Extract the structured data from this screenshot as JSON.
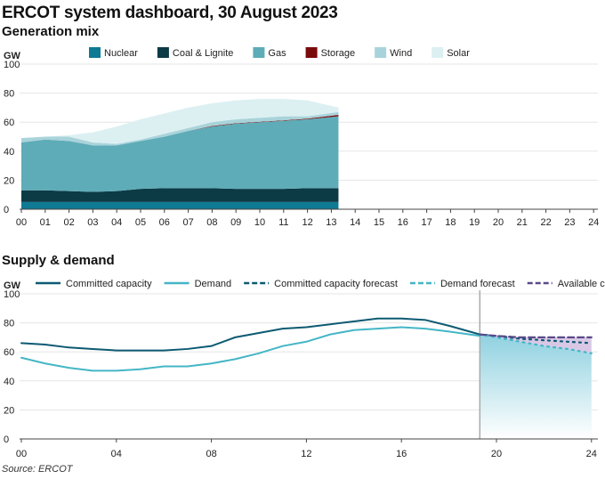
{
  "title": "ERCOT system dashboard, 30 August 2023",
  "source": "Source: ERCOT",
  "chart_data": [
    {
      "type": "area",
      "title": "Generation mix",
      "ylabel": "GW",
      "ylim": [
        0,
        100
      ],
      "yticks": [
        0,
        20,
        40,
        60,
        80,
        100
      ],
      "xlim": [
        0,
        24
      ],
      "xticks": [
        "00",
        "01",
        "02",
        "03",
        "04",
        "05",
        "06",
        "07",
        "08",
        "09",
        "10",
        "11",
        "12",
        "13",
        "14",
        "15",
        "16",
        "17",
        "18",
        "19",
        "20",
        "21",
        "22",
        "23",
        "24"
      ],
      "stacked": true,
      "x": [
        0,
        1,
        2,
        3,
        4,
        5,
        6,
        7,
        8,
        9,
        10,
        11,
        12,
        13.3
      ],
      "series": [
        {
          "name": "Nuclear",
          "color": "#0e7a93",
          "values": [
            5,
            5,
            5,
            5,
            5,
            5,
            5,
            5,
            5,
            5,
            5,
            5,
            5,
            5
          ]
        },
        {
          "name": "Coal & Lignite",
          "color": "#0c3a45",
          "values": [
            8,
            8,
            7.5,
            7,
            7.5,
            9,
            9.5,
            9.5,
            9.5,
            9,
            9,
            9,
            9.5,
            9.5
          ]
        },
        {
          "name": "Gas",
          "color": "#5eacb8",
          "values": [
            33,
            35,
            34.5,
            32,
            31.5,
            33,
            35.5,
            39.5,
            42.5,
            45,
            46,
            47,
            47.5,
            49.5
          ]
        },
        {
          "name": "Storage",
          "color": "#7a0b0b",
          "values": [
            0,
            0,
            0,
            0,
            0,
            0,
            0,
            0,
            0.4,
            0.3,
            0.3,
            0.3,
            0.4,
            1
          ]
        },
        {
          "name": "Wind",
          "color": "#a9d3da",
          "values": [
            3,
            2,
            3,
            2,
            1,
            1,
            2,
            2,
            2.6,
            2.7,
            2.7,
            2.7,
            1.6,
            2
          ]
        },
        {
          "name": "Solar",
          "color": "#dcf0f2",
          "values": [
            0,
            0,
            1,
            7,
            12,
            14,
            14,
            14,
            13,
            13,
            13,
            12,
            11,
            3
          ]
        }
      ]
    },
    {
      "type": "line",
      "title": "Supply & demand",
      "ylabel": "GW",
      "ylim": [
        0,
        100
      ],
      "yticks": [
        0,
        20,
        40,
        60,
        80,
        100
      ],
      "xlim": [
        0,
        24
      ],
      "xticks": [
        "00",
        "04",
        "08",
        "12",
        "16",
        "20",
        "24"
      ],
      "now": 19.3,
      "series": [
        {
          "name": "Committed capacity",
          "color": "#0c5a72",
          "style": "solid",
          "x": [
            0,
            1,
            2,
            3,
            4,
            5,
            6,
            7,
            8,
            9,
            10,
            11,
            12,
            13,
            14,
            15,
            16,
            17,
            18,
            19.3
          ],
          "values": [
            66,
            65,
            63,
            62,
            61,
            61,
            61,
            62,
            64,
            70,
            73,
            76,
            77,
            79,
            81,
            83,
            83,
            82,
            78,
            72
          ]
        },
        {
          "name": "Demand",
          "color": "#44b6c6",
          "style": "solid",
          "x": [
            0,
            1,
            2,
            3,
            4,
            5,
            6,
            7,
            8,
            9,
            10,
            11,
            12,
            13,
            14,
            15,
            16,
            17,
            18,
            19.3
          ],
          "values": [
            56,
            52,
            49,
            47,
            47,
            48,
            50,
            50,
            52,
            55,
            59,
            64,
            67,
            72,
            75,
            76,
            77,
            76,
            74,
            71
          ]
        },
        {
          "name": "Committed capacity forecast",
          "color": "#0c5a72",
          "style": "dotted",
          "x": [
            19.3,
            20,
            21,
            22,
            23,
            24
          ],
          "values": [
            72,
            71,
            69,
            68,
            67,
            66
          ]
        },
        {
          "name": "Demand forecast",
          "color": "#44b6c6",
          "style": "dotted",
          "x": [
            19.3,
            20,
            21,
            22,
            23,
            24
          ],
          "values": [
            72,
            70,
            67,
            64,
            62,
            59
          ]
        },
        {
          "name": "Available capacity",
          "color": "#5a4a8a",
          "style": "dashed",
          "x": [
            19.3,
            20,
            21,
            22,
            23,
            24
          ],
          "values": [
            72,
            71,
            70,
            70,
            70,
            70
          ]
        }
      ]
    }
  ]
}
